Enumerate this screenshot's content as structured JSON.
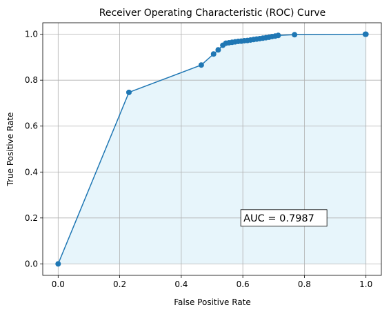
{
  "chart_data": {
    "type": "line",
    "title": "Receiver Operating Characteristic (ROC) Curve",
    "xlabel": "False Positive Rate",
    "ylabel": "True Positive Rate",
    "xlim": [
      -0.05,
      1.05
    ],
    "ylim": [
      -0.05,
      1.05
    ],
    "grid": true,
    "x_ticks": [
      "0.0",
      "0.2",
      "0.4",
      "0.6",
      "0.8",
      "1.0"
    ],
    "y_ticks": [
      "0.0",
      "0.2",
      "0.4",
      "0.6",
      "0.8",
      "1.0"
    ],
    "annotation": "AUC = 0.7987",
    "colors": {
      "line": "#1f77b4",
      "fill": "#87ceeb"
    },
    "series": [
      {
        "x": [
          0.0,
          0.23,
          0.465,
          0.505,
          0.52,
          0.535,
          0.545,
          0.555,
          0.565,
          0.575,
          0.585,
          0.595,
          0.605,
          0.615,
          0.625,
          0.635,
          0.645,
          0.655,
          0.665,
          0.675,
          0.685,
          0.695,
          0.705,
          0.715,
          0.768,
          0.998,
          1.0
        ],
        "y": [
          0.0,
          0.747,
          0.866,
          0.914,
          0.932,
          0.952,
          0.961,
          0.963,
          0.965,
          0.967,
          0.969,
          0.97,
          0.972,
          0.973,
          0.975,
          0.977,
          0.979,
          0.981,
          0.983,
          0.985,
          0.987,
          0.99,
          0.992,
          0.995,
          0.998,
          1.0,
          1.0
        ]
      }
    ]
  }
}
